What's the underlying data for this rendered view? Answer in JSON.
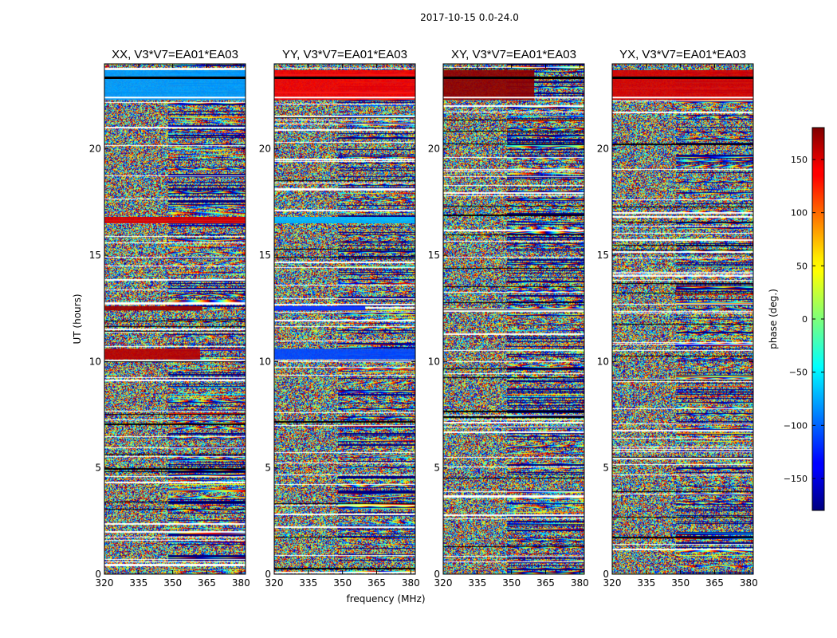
{
  "chart_data": {
    "type": "heatmap",
    "suptitle": "2017-10-15 0.0-24.0",
    "xlabel": "frequency (MHz)",
    "ylabel": "UT (hours)",
    "xlim": [
      320,
      382
    ],
    "ylim": [
      0,
      24
    ],
    "xticks": [
      320,
      335,
      350,
      365,
      380
    ],
    "yticks": [
      0,
      5,
      10,
      15,
      20
    ],
    "panels": [
      {
        "title": "XX, V3*V7=EA01*EA03",
        "bands": [
          {
            "t0": 10.1,
            "t1": 10.6,
            "phase": 160,
            "f1": 362
          },
          {
            "t0": 12.4,
            "t1": 12.6,
            "phase": 170,
            "f1": 363
          },
          {
            "t0": 16.5,
            "t1": 16.8,
            "phase": 150,
            "f1": 382
          },
          {
            "t0": 22.3,
            "t1": 23.7,
            "phase": -80,
            "f1": 382
          }
        ]
      },
      {
        "title": "YY, V3*V7=EA01*EA03",
        "bands": [
          {
            "t0": 10.1,
            "t1": 10.6,
            "phase": -110,
            "f1": 382
          },
          {
            "t0": 12.4,
            "t1": 12.6,
            "phase": -120,
            "f1": 360
          },
          {
            "t0": 16.5,
            "t1": 16.8,
            "phase": -70,
            "f1": 382
          },
          {
            "t0": 22.3,
            "t1": 23.7,
            "phase": 140,
            "f1": 382
          }
        ]
      },
      {
        "title": "XY, V3*V7=EA01*EA03",
        "bands": [
          {
            "t0": 22.3,
            "t1": 23.7,
            "phase": 175,
            "f1": 360
          }
        ]
      },
      {
        "title": "YX, V3*V7=EA01*EA03",
        "bands": [
          {
            "t0": 22.3,
            "t1": 23.7,
            "phase": 150,
            "f1": 382
          }
        ]
      }
    ],
    "colorbar": {
      "label": "phase (deg.)",
      "range": [
        -180,
        180
      ],
      "ticks": [
        150,
        100,
        50,
        0,
        -50,
        -100,
        -150
      ],
      "colormap": "jet"
    }
  }
}
